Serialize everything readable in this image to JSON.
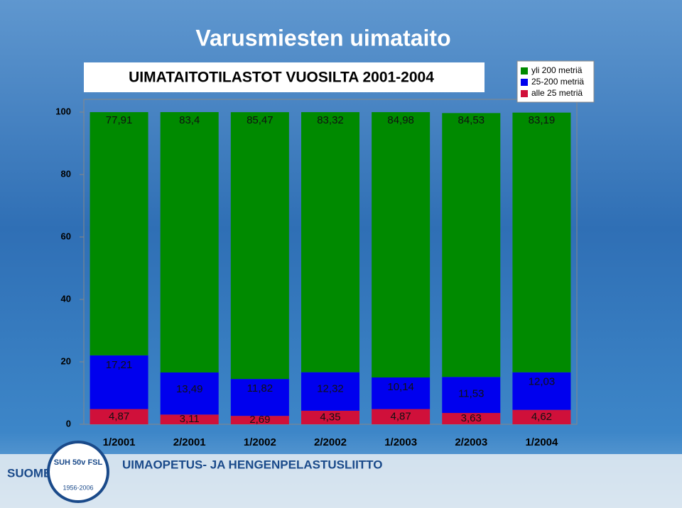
{
  "chart_data": {
    "type": "stacked_bar",
    "title": "Varusmiesten uimataito",
    "subtitle": "UIMATAITOTILASTOT VUOSILTA 2001-2004",
    "categories": [
      "1/2001",
      "2/2001",
      "1/2002",
      "2/2002",
      "1/2003",
      "2/2003",
      "1/2004"
    ],
    "series": [
      {
        "name": "yli 200 metriä",
        "color": "#008a00",
        "values": [
          77.91,
          83.4,
          85.47,
          83.32,
          84.98,
          84.53,
          83.19
        ],
        "value_labels": [
          "77,91",
          "83,4",
          "85,47",
          "83,32",
          "84,98",
          "84,53",
          "83,19"
        ]
      },
      {
        "name": "25-200 metriä",
        "color": "#0000ee",
        "values": [
          17.21,
          13.49,
          11.82,
          12.32,
          10.14,
          11.53,
          12.03
        ],
        "value_labels": [
          "17,21",
          "13,49",
          "11,82",
          "12,32",
          "10,14",
          "11,53",
          "12,03"
        ]
      },
      {
        "name": "alle 25 metriä",
        "color": "#d0103a",
        "values": [
          4.87,
          3.11,
          2.69,
          4.35,
          4.87,
          3.63,
          4.62
        ],
        "value_labels": [
          "4,87",
          "3,11",
          "2,69",
          "4,35",
          "4,87",
          "3,63",
          "4,62"
        ]
      }
    ],
    "ylim": [
      0,
      100
    ],
    "yticks": [
      0,
      20,
      40,
      60,
      80,
      100
    ],
    "legend": "top-right"
  },
  "footer": {
    "country": "SUOMEN",
    "organization": "UIMAOPETUS- JA HENGENPELASTUSLIITTO",
    "logo": "SUH 50v FSL",
    "years": "1956-2006"
  }
}
